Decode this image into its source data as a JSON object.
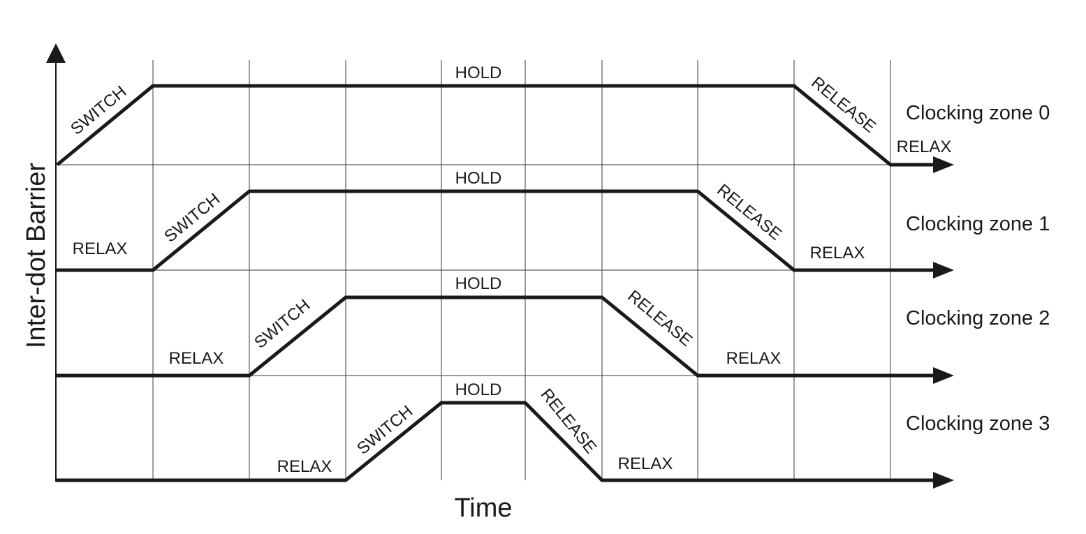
{
  "axes": {
    "y_label": "Inter-dot Barrier",
    "x_label": "Time"
  },
  "phase_labels": {
    "switch": "SWITCH",
    "hold": "HOLD",
    "release": "RELEASE",
    "relax": "RELAX"
  },
  "zones": [
    {
      "label": "Clocking zone 0",
      "phases": [
        "SWITCH",
        "HOLD",
        "RELEASE",
        "RELAX"
      ]
    },
    {
      "label": "Clocking zone 1",
      "phases": [
        "RELAX",
        "SWITCH",
        "HOLD",
        "RELEASE",
        "RELAX"
      ]
    },
    {
      "label": "Clocking zone 2",
      "phases": [
        "RELAX",
        "SWITCH",
        "HOLD",
        "RELEASE",
        "RELAX"
      ]
    },
    {
      "label": "Clocking zone 3",
      "phases": [
        "RELAX",
        "SWITCH",
        "HOLD",
        "RELEASE",
        "RELAX"
      ]
    }
  ]
}
